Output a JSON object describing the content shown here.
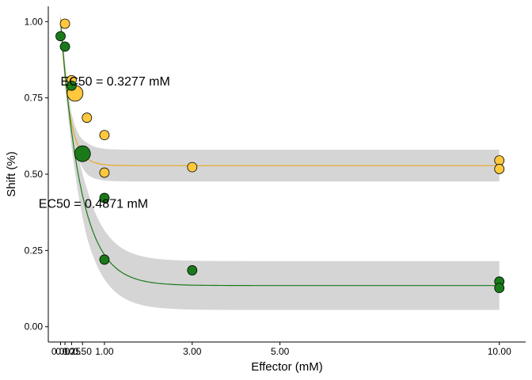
{
  "chart_data": {
    "type": "scatter",
    "title": "",
    "xlabel": "Effector (mM)",
    "ylabel": "Shift (%)",
    "xlim": [
      -0.28,
      10.6
    ],
    "ylim": [
      -0.05,
      1.05
    ],
    "x_ticks": [
      0.0,
      0.1,
      0.25,
      0.5,
      1.0,
      3.0,
      5.0,
      10.0
    ],
    "x_tick_labels": [
      "0.00",
      "0.10",
      "0.25",
      "0.50",
      "1.00",
      "3.00",
      "5.00",
      "10.00"
    ],
    "y_ticks": [
      0.0,
      0.25,
      0.5,
      0.75,
      1.0
    ],
    "y_tick_labels": [
      "0.00",
      "0.25",
      "0.50",
      "0.75",
      "1.00"
    ],
    "grid": false,
    "legend": "none",
    "band_color": "#d3d3d3",
    "series": [
      {
        "color": "#E8A820",
        "point_color": "#FFC83D",
        "ec50_label": "EC50 = 0.3277 mM",
        "ec50_label_pos": {
          "x": 0.0,
          "y": 0.79
        },
        "fit": {
          "top": 1.01,
          "bottom": 0.528,
          "k": 5.0
        },
        "band_halfwidth": 0.052,
        "points": [
          {
            "x": 0.25,
            "y": 0.808,
            "size": 1
          },
          {
            "x": 0.33,
            "y": 0.765,
            "size": 2
          },
          {
            "x": 0.1,
            "y": 0.993,
            "size": 1
          },
          {
            "x": 0.6,
            "y": 0.685,
            "size": 1
          },
          {
            "x": 1.0,
            "y": 0.628,
            "size": 1
          },
          {
            "x": 1.0,
            "y": 0.505,
            "size": 1
          },
          {
            "x": 3.0,
            "y": 0.523,
            "size": 1
          },
          {
            "x": 10.0,
            "y": 0.545,
            "size": 1
          },
          {
            "x": 10.0,
            "y": 0.517,
            "size": 1
          }
        ]
      },
      {
        "color": "#1B7A1B",
        "point_color": "#1A7A1A",
        "ec50_label": "EC50 = 0.4871 mM",
        "ec50_label_pos": {
          "x": -0.5,
          "y": 0.39
        },
        "fit": {
          "top": 1.0,
          "bottom": 0.135,
          "k": 2.15
        },
        "band_halfwidth": 0.08,
        "points": [
          {
            "x": 0.0,
            "y": 0.952,
            "size": 1
          },
          {
            "x": 0.1,
            "y": 0.918,
            "size": 1
          },
          {
            "x": 0.25,
            "y": 0.79,
            "size": 1
          },
          {
            "x": 0.5,
            "y": 0.567,
            "size": 2
          },
          {
            "x": 1.0,
            "y": 0.422,
            "size": 1
          },
          {
            "x": 1.0,
            "y": 0.22,
            "size": 1
          },
          {
            "x": 3.0,
            "y": 0.185,
            "size": 1
          },
          {
            "x": 10.0,
            "y": 0.148,
            "size": 1
          },
          {
            "x": 10.0,
            "y": 0.127,
            "size": 1
          }
        ]
      }
    ]
  }
}
